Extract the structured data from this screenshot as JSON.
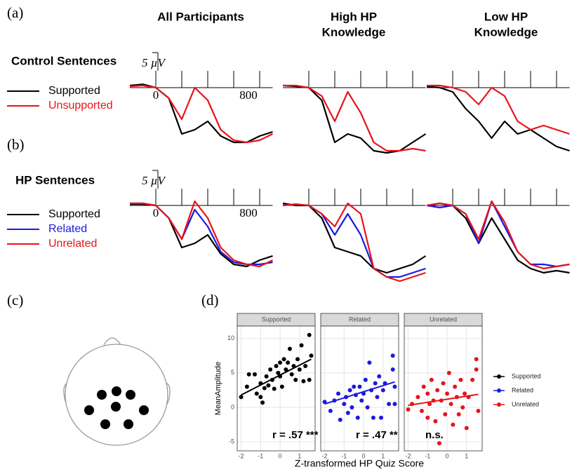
{
  "figure": {
    "panel_labels": [
      "(a)",
      "(b)",
      "(c)",
      "(d)"
    ],
    "column_titles": [
      [
        "All Participants"
      ],
      [
        "High HP",
        "Knowledge"
      ],
      [
        "Low HP",
        "Knowledge"
      ]
    ],
    "row_labels": [
      "Control Sentences",
      "HP Sentences"
    ]
  },
  "chart_data": [
    {
      "type": "line",
      "row": 0,
      "column": 0,
      "x": [
        -200,
        -100,
        0,
        100,
        200,
        300,
        400,
        500,
        600,
        700,
        800,
        900
      ],
      "ylim": [
        -18,
        5
      ],
      "xlim": [
        -200,
        900
      ],
      "xticks": [
        0,
        200,
        400,
        600,
        800
      ],
      "labeled_xticks": [
        0,
        800
      ],
      "scale_bar": {
        "value": 5,
        "label": "5 µV"
      },
      "series": [
        {
          "name": "Supported",
          "color": "#000000",
          "values": [
            0.5,
            0.8,
            0,
            -2.5,
            -11,
            -10,
            -8,
            -11.5,
            -13,
            -13,
            -11.5,
            -10.5
          ]
        },
        {
          "name": "Unsupported",
          "color": "#e8141a",
          "values": [
            0.3,
            0.5,
            0,
            -2.5,
            -7.5,
            0,
            -3,
            -10,
            -12.5,
            -13,
            -12.5,
            -11
          ]
        }
      ]
    },
    {
      "type": "line",
      "row": 0,
      "column": 1,
      "x": [
        -200,
        -100,
        0,
        100,
        200,
        300,
        400,
        500,
        600,
        700,
        800,
        900
      ],
      "ylim": [
        -18,
        5
      ],
      "xlim": [
        -200,
        900
      ],
      "xticks": [
        0,
        200,
        400,
        600,
        800
      ],
      "series": [
        {
          "name": "Supported",
          "color": "#000000",
          "values": [
            0.5,
            0.3,
            0,
            -3,
            -13,
            -11,
            -12,
            -15,
            -15.5,
            -15,
            -13,
            -11
          ]
        },
        {
          "name": "Unsupported",
          "color": "#e8141a",
          "values": [
            0.5,
            0.5,
            0,
            -2,
            -8,
            -1,
            -6,
            -13,
            -15,
            -15,
            -14.5,
            -15
          ]
        }
      ]
    },
    {
      "type": "line",
      "row": 0,
      "column": 2,
      "x": [
        -200,
        -100,
        0,
        100,
        200,
        300,
        400,
        500,
        600,
        700,
        800,
        900
      ],
      "ylim": [
        -18,
        5
      ],
      "xlim": [
        -200,
        900
      ],
      "xticks": [
        0,
        200,
        400,
        600,
        800
      ],
      "series": [
        {
          "name": "Supported",
          "color": "#000000",
          "values": [
            0.3,
            0,
            -1,
            -5,
            -8,
            -12,
            -8,
            -11,
            -10,
            -12,
            -14,
            -15
          ]
        },
        {
          "name": "Unsupported",
          "color": "#e8141a",
          "values": [
            0.5,
            0.5,
            0,
            -1,
            -4,
            0,
            -2,
            -8,
            -10,
            -9,
            -10,
            -11
          ]
        }
      ]
    },
    {
      "type": "line",
      "row": 1,
      "column": 0,
      "x": [
        -200,
        -100,
        0,
        100,
        200,
        300,
        400,
        500,
        600,
        700,
        800,
        900
      ],
      "ylim": [
        -18,
        5
      ],
      "xlim": [
        -200,
        900
      ],
      "xticks": [
        0,
        200,
        400,
        600,
        800
      ],
      "labeled_xticks": [
        0,
        800
      ],
      "scale_bar": {
        "value": 5,
        "label": "5 µV"
      },
      "series": [
        {
          "name": "Supported",
          "color": "#000000",
          "values": [
            0.3,
            0.3,
            0,
            -3,
            -10,
            -9,
            -7,
            -11.5,
            -14,
            -14.5,
            -13,
            -12
          ]
        },
        {
          "name": "Related",
          "color": "#1a1ae0",
          "values": [
            0.5,
            0.5,
            0,
            -3,
            -8,
            -1,
            -5,
            -11,
            -13.5,
            -14,
            -14,
            -13.5
          ]
        },
        {
          "name": "Unrelated",
          "color": "#e8141a",
          "values": [
            0.5,
            0.5,
            0,
            -3,
            -8,
            1,
            -3,
            -10,
            -13,
            -14,
            -14.5,
            -13
          ]
        }
      ]
    },
    {
      "type": "line",
      "row": 1,
      "column": 1,
      "x": [
        -200,
        -100,
        0,
        100,
        200,
        300,
        400,
        500,
        600,
        700,
        800,
        900
      ],
      "ylim": [
        -18,
        5
      ],
      "xlim": [
        -200,
        900
      ],
      "xticks": [
        0,
        200,
        400,
        600,
        800
      ],
      "series": [
        {
          "name": "Supported",
          "color": "#000000",
          "values": [
            0.5,
            0,
            0,
            -3,
            -10,
            -11,
            -12,
            -15,
            -16,
            -15,
            -14,
            -12
          ]
        },
        {
          "name": "Related",
          "color": "#1a1ae0",
          "values": [
            0,
            0.3,
            0,
            -2,
            -7,
            -2,
            -7,
            -15,
            -17,
            -17,
            -16,
            -15
          ]
        },
        {
          "name": "Unrelated",
          "color": "#e8141a",
          "values": [
            0,
            0.3,
            0,
            -2,
            -5,
            0.5,
            -2,
            -15,
            -17,
            -18,
            -17,
            -16
          ]
        }
      ]
    },
    {
      "type": "line",
      "row": 1,
      "column": 2,
      "x": [
        -200,
        -100,
        0,
        100,
        200,
        300,
        400,
        500,
        600,
        700,
        800,
        900
      ],
      "ylim": [
        -18,
        5
      ],
      "xlim": [
        -200,
        900
      ],
      "xticks": [
        0,
        200,
        400,
        600,
        800
      ],
      "series": [
        {
          "name": "Supported",
          "color": "#000000",
          "values": [
            0,
            0.5,
            0,
            -3,
            -9,
            -3,
            -8,
            -13,
            -15,
            -16,
            -15.5,
            -16
          ]
        },
        {
          "name": "Related",
          "color": "#1a1ae0",
          "values": [
            0,
            -0.5,
            0,
            -2,
            -9,
            1,
            -5,
            -11,
            -14,
            -14,
            -14.5,
            -14
          ]
        },
        {
          "name": "Unrelated",
          "color": "#e8141a",
          "values": [
            0,
            0.5,
            0,
            -2,
            -8,
            1,
            -4,
            -11,
            -14,
            -15,
            -14.5,
            -14
          ]
        }
      ]
    },
    {
      "type": "scatter",
      "xlabel": "Z-transformed HP Quiz Score",
      "ylabel": "MeanAmplitude",
      "xlim": [
        -2.2,
        1.8
      ],
      "ylim": [
        -6.3,
        11.8
      ],
      "xticks": [
        -2,
        -1,
        0,
        1
      ],
      "yticks": [
        -5,
        0,
        5,
        10
      ],
      "grid": true,
      "series": [
        {
          "name": "Supported",
          "color": "#000000",
          "annotation": "r = .57 ***",
          "x": [
            -2,
            -1.7,
            -1.6,
            -1.3,
            -1.2,
            -1,
            -1,
            -0.9,
            -0.8,
            -0.7,
            -0.6,
            -0.5,
            -0.4,
            -0.3,
            -0.2,
            -0.1,
            0,
            0,
            0.1,
            0.2,
            0.3,
            0.4,
            0.5,
            0.6,
            0.7,
            0.8,
            0.9,
            1,
            1.1,
            1.2,
            1.3,
            1.5,
            1.5,
            1.6
          ],
          "values": [
            1.5,
            3,
            4.8,
            4.8,
            2,
            1.5,
            3.5,
            0.7,
            2.8,
            4.5,
            3.2,
            5.5,
            4,
            2.7,
            6,
            5,
            4.5,
            6.5,
            3,
            7,
            5.5,
            6.5,
            8.5,
            4.8,
            6,
            4,
            7,
            5.5,
            9,
            3.8,
            6,
            10.5,
            4,
            7.5
          ],
          "fit": {
            "x": [
              -2,
              1.6
            ],
            "y": [
              1.8,
              7
            ]
          }
        },
        {
          "name": "Related",
          "color": "#1a1ae0",
          "annotation": "r = .47 **",
          "x": [
            -2,
            -1.7,
            -1.5,
            -1.3,
            -1.2,
            -1,
            -0.9,
            -0.8,
            -0.7,
            -0.6,
            -0.5,
            -0.4,
            -0.3,
            -0.2,
            -0.1,
            0,
            0.1,
            0.2,
            0.3,
            0.4,
            0.5,
            0.6,
            0.7,
            0.8,
            0.9,
            1,
            1.1,
            1.3,
            1.5,
            1.5,
            1.6,
            1.6
          ],
          "values": [
            0.8,
            -0.5,
            1,
            2,
            -1.8,
            0.5,
            1.5,
            -0.8,
            2.5,
            0,
            3,
            1.8,
            -1.5,
            3,
            1,
            2,
            4,
            0,
            6.5,
            2.5,
            -1.5,
            3.5,
            1.5,
            4.5,
            -1.5,
            2.5,
            3.5,
            0.5,
            7.5,
            5.5,
            3,
            0.5
          ],
          "fit": {
            "x": [
              -2,
              1.6
            ],
            "y": [
              0.5,
              3.7
            ]
          }
        },
        {
          "name": "Unrelated",
          "color": "#e8141a",
          "annotation": "n.s.",
          "x": [
            -2,
            -1.8,
            -1.5,
            -1.3,
            -1.2,
            -1,
            -1,
            -0.9,
            -0.8,
            -0.7,
            -0.6,
            -0.5,
            -0.4,
            -0.3,
            -0.2,
            -0.1,
            0,
            0.1,
            0.2,
            0.3,
            0.4,
            0.5,
            0.6,
            0.7,
            0.8,
            0.9,
            1,
            1.1,
            1.3,
            1.5,
            1.5,
            1.6
          ],
          "values": [
            -0.3,
            0.5,
            1.5,
            -0.5,
            3,
            2,
            -1.5,
            0.5,
            4,
            1,
            -2,
            2.5,
            -5.2,
            1,
            3.5,
            -1,
            2,
            5,
            0.5,
            -2.5,
            3,
            1.5,
            -1,
            4,
            0,
            2,
            -3,
            1.5,
            4,
            7,
            5.5,
            -0.5
          ],
          "fit": {
            "x": [
              -2,
              1.6
            ],
            "y": [
              0.3,
              1.9
            ]
          }
        }
      ]
    }
  ]
}
